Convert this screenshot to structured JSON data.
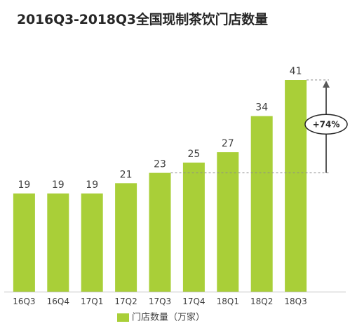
{
  "chart_data": {
    "type": "bar",
    "title": "2016Q3-2018Q3全国现制茶饮门店数量",
    "categories": [
      "16Q3",
      "16Q4",
      "17Q1",
      "17Q2",
      "17Q3",
      "17Q4",
      "18Q1",
      "18Q2",
      "18Q3"
    ],
    "series": [
      {
        "name": "门店数量（万家）",
        "values": [
          19,
          19,
          19,
          21,
          23,
          25,
          27,
          34,
          41
        ],
        "color": "#a9cf38"
      }
    ],
    "ylim": [
      0,
      46
    ],
    "grid": false,
    "legend_position": "bottom",
    "annotation": {
      "text": "+74%",
      "from_category": "17Q3",
      "to_category": "18Q3",
      "from_value": 23,
      "to_value": 41
    }
  }
}
